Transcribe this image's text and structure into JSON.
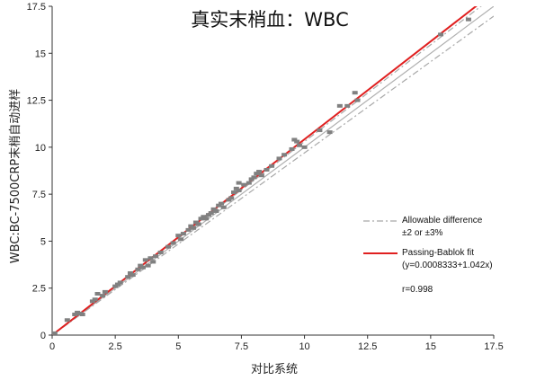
{
  "chart_data": {
    "type": "scatter",
    "title": "真实末梢血：WBC",
    "xlabel": "对比系统",
    "ylabel": "WBC:BC-7500CRP末梢自动进样",
    "xlim": [
      0,
      17.5
    ],
    "ylim": [
      0,
      17.5
    ],
    "xticks": [
      0,
      2.5,
      5,
      7.5,
      10,
      12.5,
      15,
      17.5
    ],
    "yticks": [
      0,
      2.5,
      5,
      7.5,
      10,
      12.5,
      15,
      17.5
    ],
    "x_tick_labels": [
      "0",
      "2.5",
      "5",
      "7.5",
      "10",
      "12.5",
      "15",
      "17.5"
    ],
    "y_tick_labels": [
      "0",
      "2.5",
      "5",
      "7.5",
      "10",
      "12.5",
      "15",
      "17.5"
    ],
    "grid": false,
    "legend_position": "right",
    "legend": {
      "allowable_label": "Allowable difference",
      "allowable_sub": "±2 or ±3%",
      "fit_label": "Passing-Bablok fit",
      "fit_sub": "(y=0.0008333+1.042x)",
      "r_text": "r=0.998"
    },
    "colors": {
      "points": "#808080",
      "fit": "#e02020",
      "identity": "#b0b0b0",
      "allowable": "#a8a8a8"
    },
    "fit": {
      "intercept": 0.0008333,
      "slope": 1.042
    },
    "points": [
      [
        0.1,
        0.1
      ],
      [
        0.6,
        0.8
      ],
      [
        0.9,
        1.1
      ],
      [
        1.0,
        1.2
      ],
      [
        1.1,
        1.15
      ],
      [
        1.2,
        1.1
      ],
      [
        1.6,
        1.8
      ],
      [
        1.7,
        1.9
      ],
      [
        1.8,
        2.2
      ],
      [
        2.0,
        2.1
      ],
      [
        2.1,
        2.3
      ],
      [
        2.5,
        2.6
      ],
      [
        2.6,
        2.7
      ],
      [
        2.7,
        2.8
      ],
      [
        3.0,
        3.1
      ],
      [
        3.1,
        3.3
      ],
      [
        3.2,
        3.2
      ],
      [
        3.4,
        3.5
      ],
      [
        3.5,
        3.7
      ],
      [
        3.6,
        3.6
      ],
      [
        3.8,
        3.7
      ],
      [
        3.7,
        4.0
      ],
      [
        3.9,
        4.1
      ],
      [
        4.0,
        3.9
      ],
      [
        4.1,
        4.2
      ],
      [
        4.3,
        4.4
      ],
      [
        4.6,
        4.7
      ],
      [
        4.8,
        4.9
      ],
      [
        5.0,
        5.3
      ],
      [
        5.1,
        5.1
      ],
      [
        5.2,
        5.4
      ],
      [
        5.4,
        5.6
      ],
      [
        5.5,
        5.8
      ],
      [
        5.6,
        5.7
      ],
      [
        5.7,
        6.0
      ],
      [
        5.8,
        5.9
      ],
      [
        5.9,
        6.2
      ],
      [
        6.0,
        6.3
      ],
      [
        6.1,
        6.2
      ],
      [
        6.2,
        6.4
      ],
      [
        6.3,
        6.5
      ],
      [
        6.4,
        6.7
      ],
      [
        6.5,
        6.6
      ],
      [
        6.6,
        6.9
      ],
      [
        6.7,
        7.0
      ],
      [
        6.8,
        6.8
      ],
      [
        7.0,
        7.2
      ],
      [
        7.1,
        7.3
      ],
      [
        7.2,
        7.6
      ],
      [
        7.3,
        7.8
      ],
      [
        7.4,
        7.7
      ],
      [
        7.4,
        8.1
      ],
      [
        7.6,
        8.0
      ],
      [
        7.8,
        8.1
      ],
      [
        7.9,
        8.3
      ],
      [
        8.0,
        8.4
      ],
      [
        8.1,
        8.6
      ],
      [
        8.2,
        8.7
      ],
      [
        8.3,
        8.5
      ],
      [
        8.5,
        8.8
      ],
      [
        8.7,
        9.0
      ],
      [
        9.0,
        9.4
      ],
      [
        9.2,
        9.6
      ],
      [
        9.5,
        9.9
      ],
      [
        9.6,
        10.4
      ],
      [
        9.7,
        10.3
      ],
      [
        9.8,
        10.1
      ],
      [
        10.0,
        10.0
      ],
      [
        10.6,
        10.9
      ],
      [
        11.0,
        10.8
      ],
      [
        11.4,
        12.2
      ],
      [
        11.7,
        12.2
      ],
      [
        12.0,
        12.9
      ],
      [
        12.1,
        12.5
      ],
      [
        15.4,
        16.0
      ],
      [
        16.5,
        16.8
      ]
    ]
  }
}
